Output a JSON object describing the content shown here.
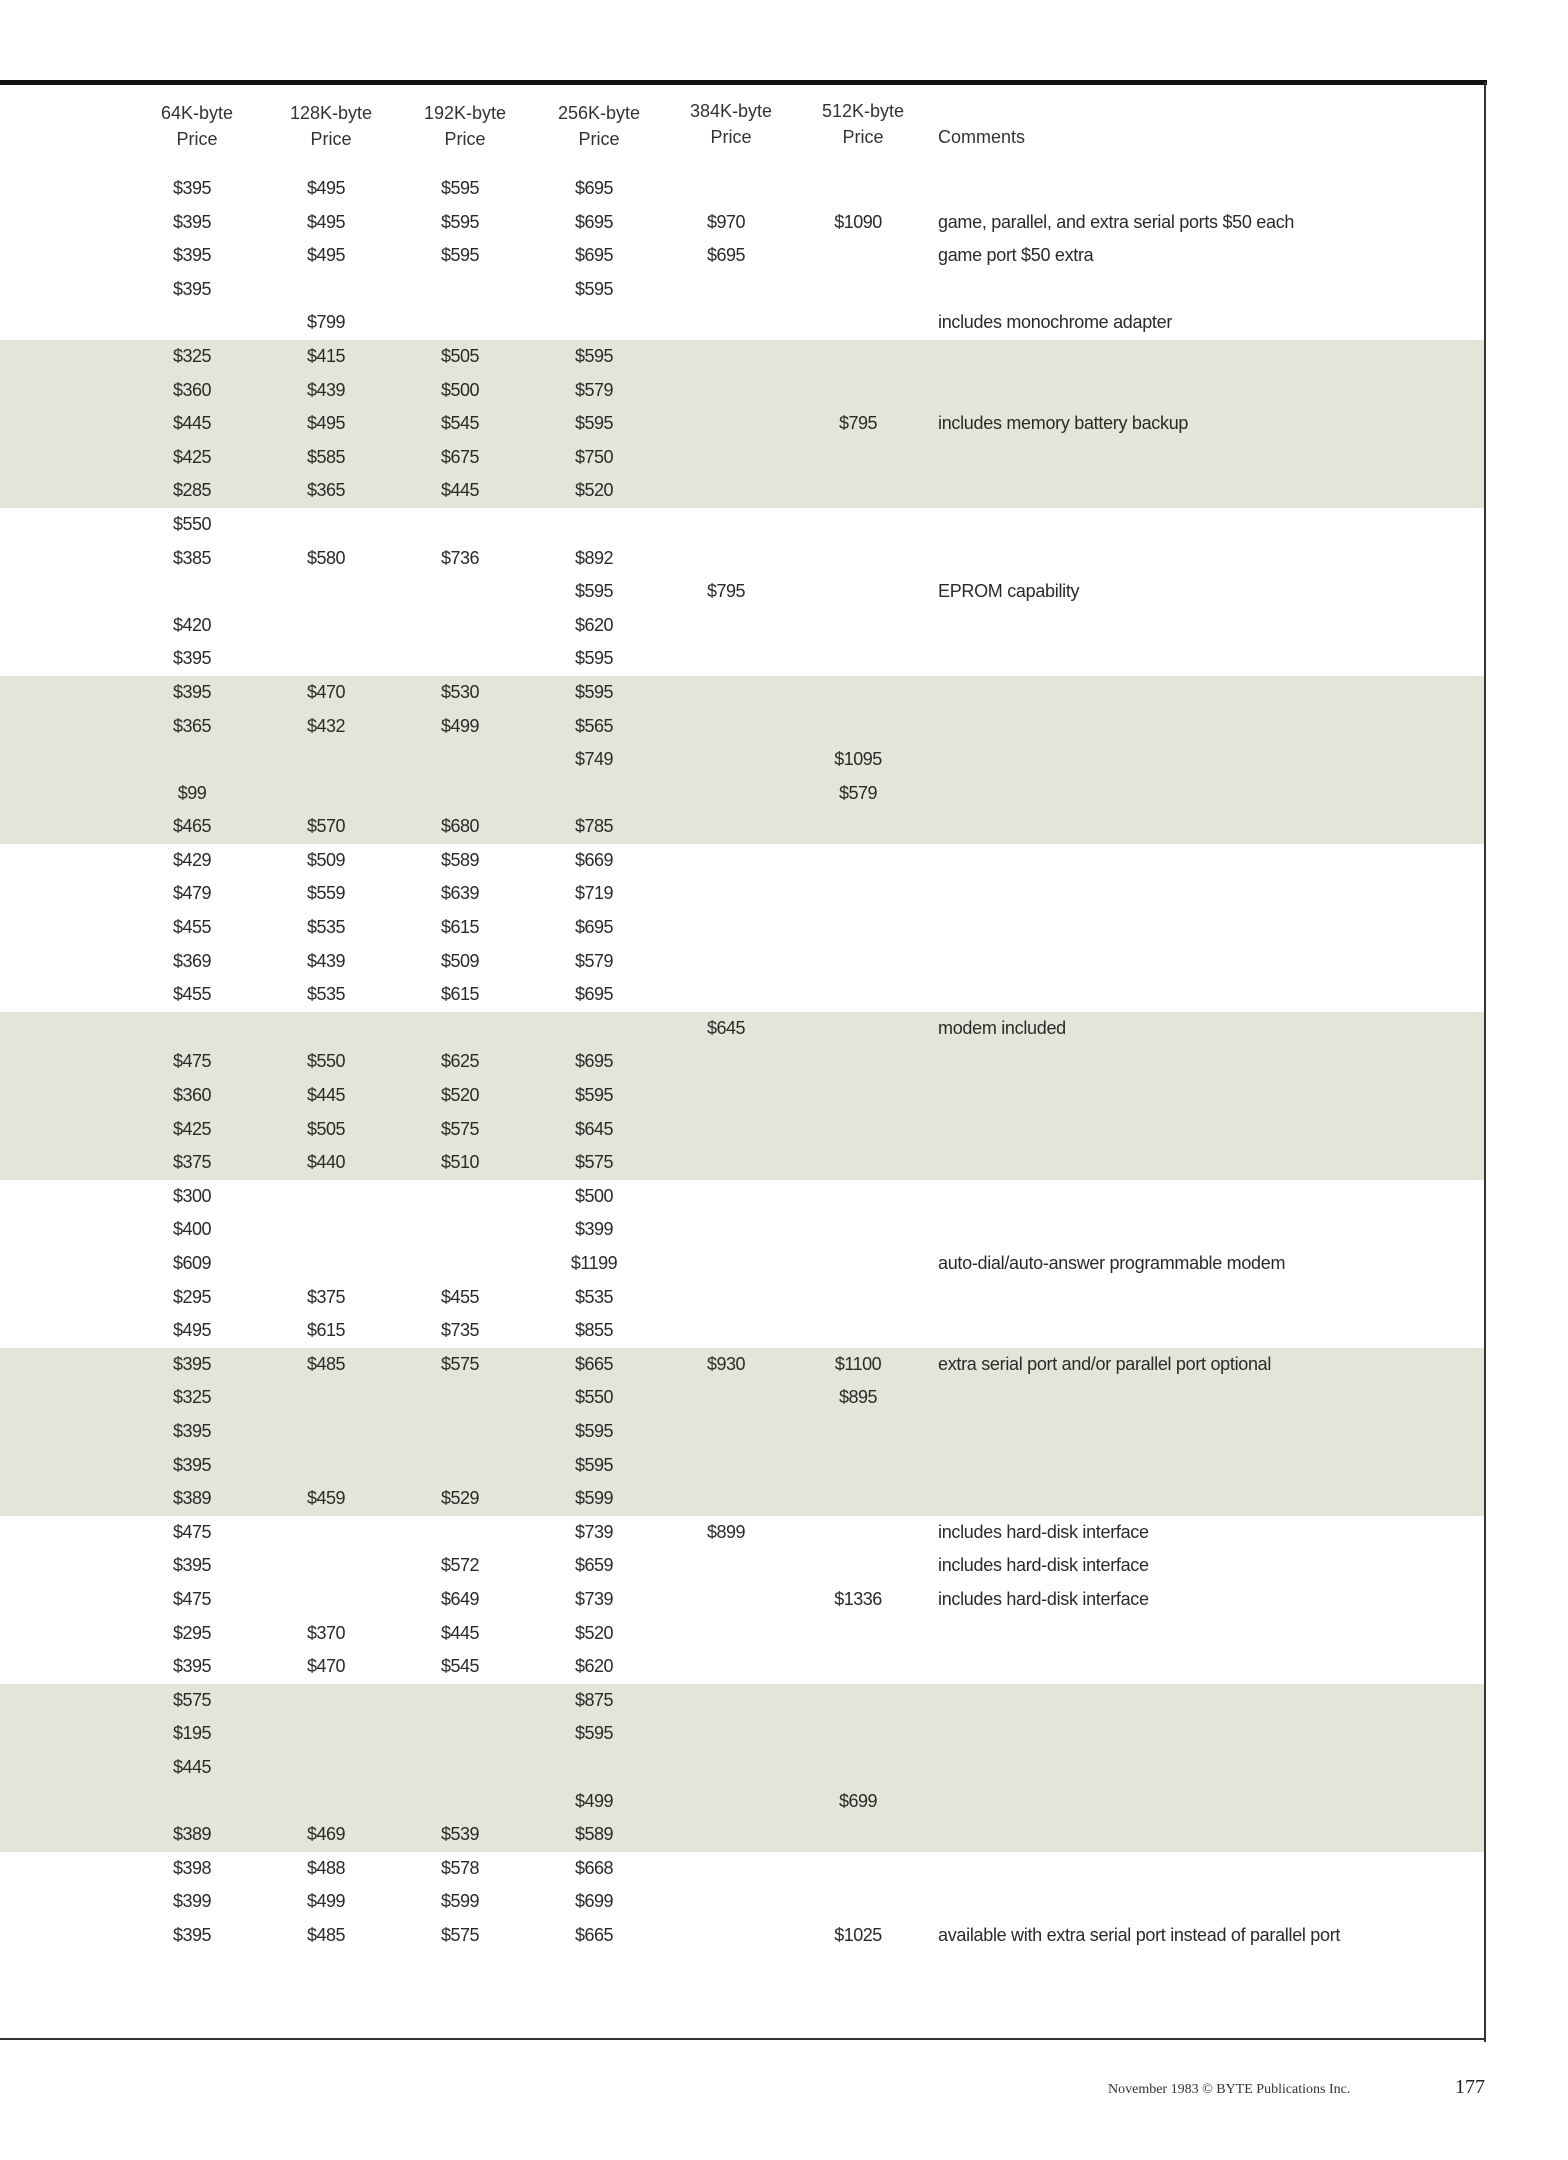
{
  "table": {
    "headers": [
      "64K-byte Price",
      "128K-byte Price",
      "192K-byte Price",
      "256K-byte Price",
      "384K-byte Price",
      "512K-byte Price",
      "Comments"
    ],
    "rows": [
      [
        "$395",
        "$495",
        "$595",
        "$695",
        "",
        "",
        ""
      ],
      [
        "$395",
        "$495",
        "$595",
        "$695",
        "$970",
        "$1090",
        "game, parallel, and extra serial ports $50 each"
      ],
      [
        "$395",
        "$495",
        "$595",
        "$695",
        "$695",
        "",
        "game port $50 extra"
      ],
      [
        "$395",
        "",
        "",
        "$595",
        "",
        "",
        ""
      ],
      [
        "",
        "$799",
        "",
        "",
        "",
        "",
        "includes monochrome adapter"
      ],
      [
        "$325",
        "$415",
        "$505",
        "$595",
        "",
        "",
        ""
      ],
      [
        "$360",
        "$439",
        "$500",
        "$579",
        "",
        "",
        ""
      ],
      [
        "$445",
        "$495",
        "$545",
        "$595",
        "",
        "$795",
        "includes memory battery backup"
      ],
      [
        "$425",
        "$585",
        "$675",
        "$750",
        "",
        "",
        ""
      ],
      [
        "$285",
        "$365",
        "$445",
        "$520",
        "",
        "",
        ""
      ],
      [
        "$550",
        "",
        "",
        "",
        "",
        "",
        ""
      ],
      [
        "$385",
        "$580",
        "$736",
        "$892",
        "",
        "",
        ""
      ],
      [
        "",
        "",
        "",
        "$595",
        "$795",
        "",
        "EPROM capability"
      ],
      [
        "$420",
        "",
        "",
        "$620",
        "",
        "",
        ""
      ],
      [
        "$395",
        "",
        "",
        "$595",
        "",
        "",
        ""
      ],
      [
        "$395",
        "$470",
        "$530",
        "$595",
        "",
        "",
        ""
      ],
      [
        "$365",
        "$432",
        "$499",
        "$565",
        "",
        "",
        ""
      ],
      [
        "",
        "",
        "",
        "$749",
        "",
        "$1095",
        ""
      ],
      [
        "$99",
        "",
        "",
        "",
        "",
        "$579",
        ""
      ],
      [
        "$465",
        "$570",
        "$680",
        "$785",
        "",
        "",
        ""
      ],
      [
        "$429",
        "$509",
        "$589",
        "$669",
        "",
        "",
        ""
      ],
      [
        "$479",
        "$559",
        "$639",
        "$719",
        "",
        "",
        ""
      ],
      [
        "$455",
        "$535",
        "$615",
        "$695",
        "",
        "",
        ""
      ],
      [
        "$369",
        "$439",
        "$509",
        "$579",
        "",
        "",
        ""
      ],
      [
        "$455",
        "$535",
        "$615",
        "$695",
        "",
        "",
        ""
      ],
      [
        "",
        "",
        "",
        "",
        "$645",
        "",
        "modem included"
      ],
      [
        "$475",
        "$550",
        "$625",
        "$695",
        "",
        "",
        ""
      ],
      [
        "$360",
        "$445",
        "$520",
        "$595",
        "",
        "",
        ""
      ],
      [
        "$425",
        "$505",
        "$575",
        "$645",
        "",
        "",
        ""
      ],
      [
        "$375",
        "$440",
        "$510",
        "$575",
        "",
        "",
        ""
      ],
      [
        "$300",
        "",
        "",
        "$500",
        "",
        "",
        ""
      ],
      [
        "$400",
        "",
        "",
        "$399",
        "",
        "",
        ""
      ],
      [
        "$609",
        "",
        "",
        "$1199",
        "",
        "",
        "auto-dial/auto-answer programmable modem"
      ],
      [
        "$295",
        "$375",
        "$455",
        "$535",
        "",
        "",
        ""
      ],
      [
        "$495",
        "$615",
        "$735",
        "$855",
        "",
        "",
        ""
      ],
      [
        "$395",
        "$485",
        "$575",
        "$665",
        "$930",
        "$1100",
        "extra serial port and/or parallel port optional"
      ],
      [
        "$325",
        "",
        "",
        "$550",
        "",
        "$895",
        ""
      ],
      [
        "$395",
        "",
        "",
        "$595",
        "",
        "",
        ""
      ],
      [
        "$395",
        "",
        "",
        "$595",
        "",
        "",
        ""
      ],
      [
        "$389",
        "$459",
        "$529",
        "$599",
        "",
        "",
        ""
      ],
      [
        "$475",
        "",
        "",
        "$739",
        "$899",
        "",
        "includes hard-disk interface"
      ],
      [
        "$395",
        "",
        "$572",
        "$659",
        "",
        "",
        "includes hard-disk interface"
      ],
      [
        "$475",
        "",
        "$649",
        "$739",
        "",
        "$1336",
        "includes hard-disk interface"
      ],
      [
        "$295",
        "$370",
        "$445",
        "$520",
        "",
        "",
        ""
      ],
      [
        "$395",
        "$470",
        "$545",
        "$620",
        "",
        "",
        ""
      ],
      [
        "$575",
        "",
        "",
        "$875",
        "",
        "",
        ""
      ],
      [
        "$195",
        "",
        "",
        "$595",
        "",
        "",
        ""
      ],
      [
        "$445",
        "",
        "",
        "",
        "",
        "",
        ""
      ],
      [
        "",
        "",
        "",
        "$499",
        "",
        "$699",
        ""
      ],
      [
        "$389",
        "$469",
        "$539",
        "$589",
        "",
        "",
        ""
      ],
      [
        "$398",
        "$488",
        "$578",
        "$668",
        "",
        "",
        ""
      ],
      [
        "$399",
        "$499",
        "$599",
        "$699",
        "",
        "",
        ""
      ],
      [
        "$395",
        "$485",
        "$575",
        "$665",
        "",
        "$1025",
        "available with extra serial port instead of parallel port"
      ]
    ]
  },
  "colors": {
    "band_shade": "#e4e5d8"
  },
  "footer": {
    "credit": "November 1983 © BYTE Publications Inc.",
    "page_number": "177"
  }
}
